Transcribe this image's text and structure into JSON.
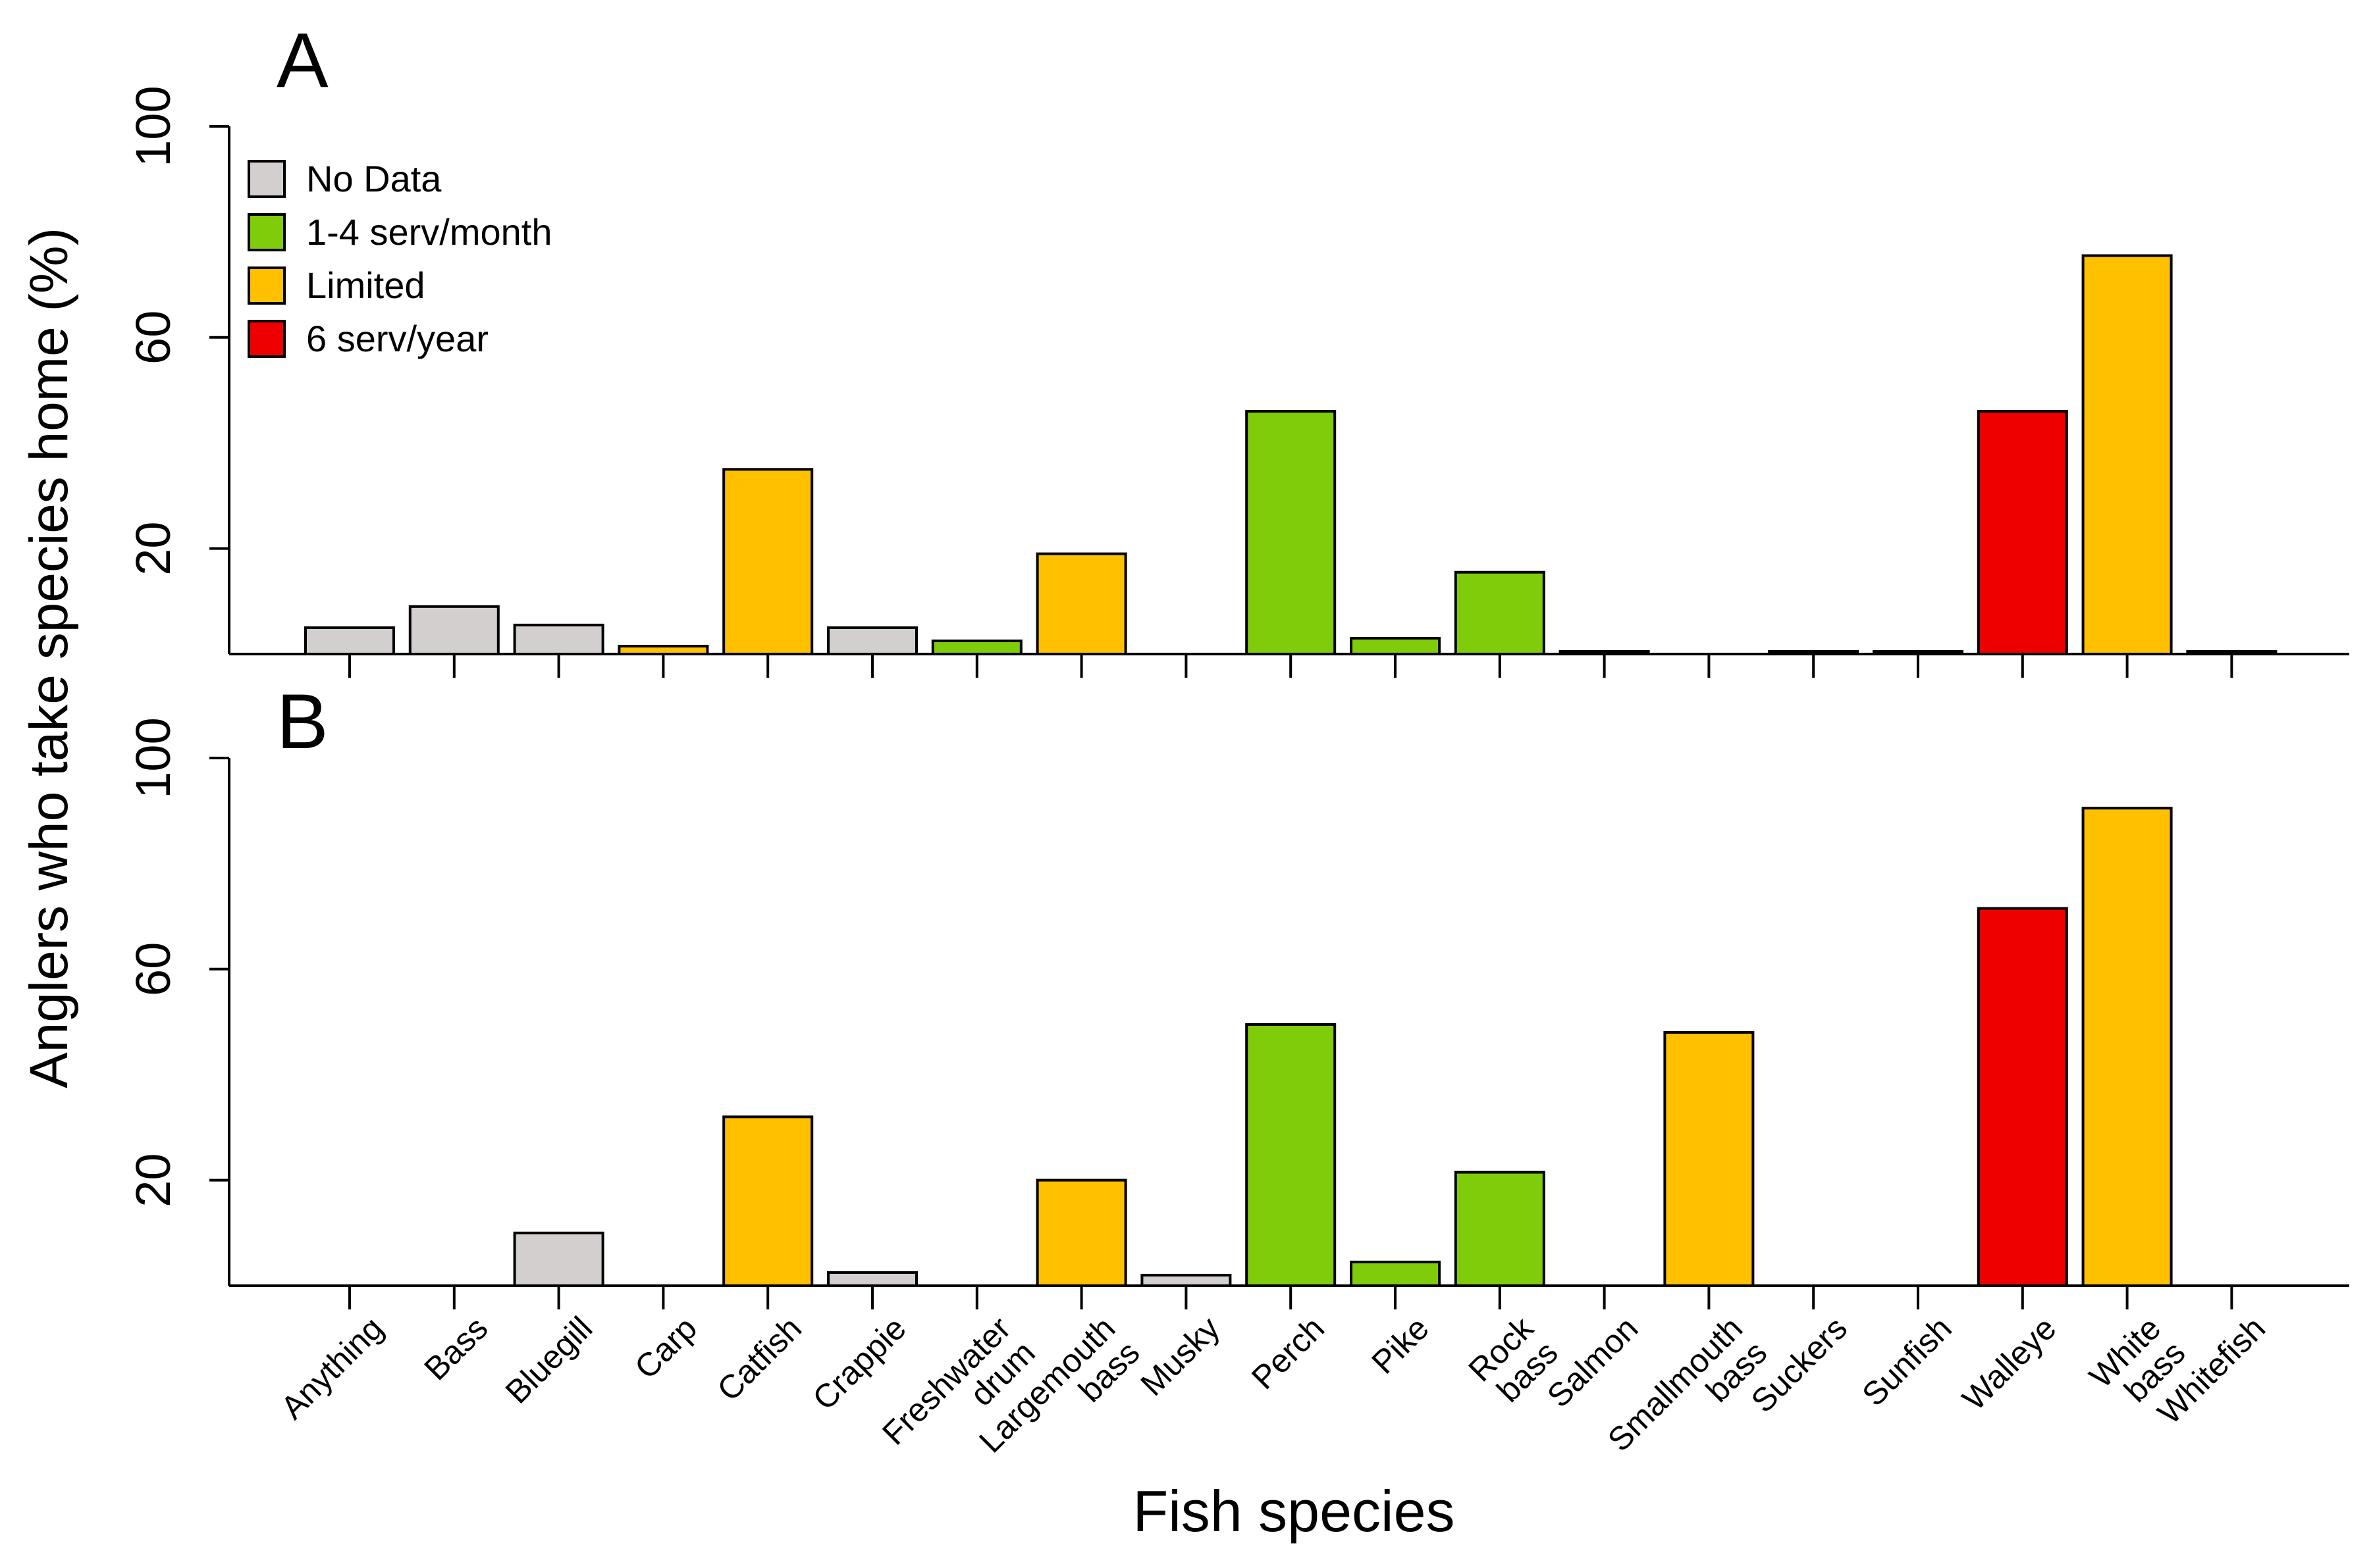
{
  "chart_data": {
    "type": "bar",
    "xlabel": "Fish species",
    "ylabel": "Anglers who take species home (%)",
    "ylim": [
      0,
      100
    ],
    "y_ticks": [
      20,
      60,
      100
    ],
    "categories": [
      "Anything",
      "Bass",
      "Bluegill",
      "Carp",
      "Catfish",
      "Crappie",
      "Freshwater drum",
      "Largemouth bass",
      "Musky",
      "Perch",
      "Pike",
      "Rock bass",
      "Salmon",
      "Smallmouth bass",
      "Suckers",
      "Sunfish",
      "Walleye",
      "White bass",
      "Whitefish"
    ],
    "category_labels": [
      [
        "Anything"
      ],
      [
        "Bass"
      ],
      [
        "Bluegill"
      ],
      [
        "Carp"
      ],
      [
        "Catfish"
      ],
      [
        "Crappie"
      ],
      [
        "Freshwater",
        "drum"
      ],
      [
        "Largemouth",
        "bass"
      ],
      [
        "Musky"
      ],
      [
        "Perch"
      ],
      [
        "Pike"
      ],
      [
        "Rock",
        "bass"
      ],
      [
        "Salmon"
      ],
      [
        "Smallmouth",
        "bass"
      ],
      [
        "Suckers"
      ],
      [
        "Sunfish"
      ],
      [
        "Walleye"
      ],
      [
        "White",
        "bass"
      ],
      [
        "Whitefish"
      ]
    ],
    "advisory": [
      "No Data",
      "No Data",
      "No Data",
      "Limited",
      "Limited",
      "No Data",
      "1-4 serv/month",
      "Limited",
      "No Data",
      "1-4 serv/month",
      "1-4 serv/month",
      "1-4 serv/month",
      "No Data",
      "Limited",
      "No Data",
      "No Data",
      "6 serv/year",
      "Limited",
      "No Data"
    ],
    "legend": [
      {
        "label": "No Data",
        "color": "#d4cfcf"
      },
      {
        "label": "1-4 serv/month",
        "color": "#7fcc0a"
      },
      {
        "label": "Limited",
        "color": "#ffc000"
      },
      {
        "label": "6 serv/year",
        "color": "#ee0000"
      }
    ],
    "panels": [
      {
        "name": "A",
        "values": [
          5,
          9,
          5.5,
          1.5,
          35,
          5,
          2.5,
          19,
          0,
          46,
          3,
          15.5,
          0.5,
          0,
          0.5,
          0.5,
          46,
          75.5,
          0.5
        ]
      },
      {
        "name": "B",
        "values": [
          0,
          0,
          10,
          0,
          32,
          2.5,
          0,
          20,
          2,
          49.5,
          4.5,
          21.5,
          0,
          48,
          0,
          0,
          71.5,
          90.5,
          0
        ]
      }
    ]
  }
}
